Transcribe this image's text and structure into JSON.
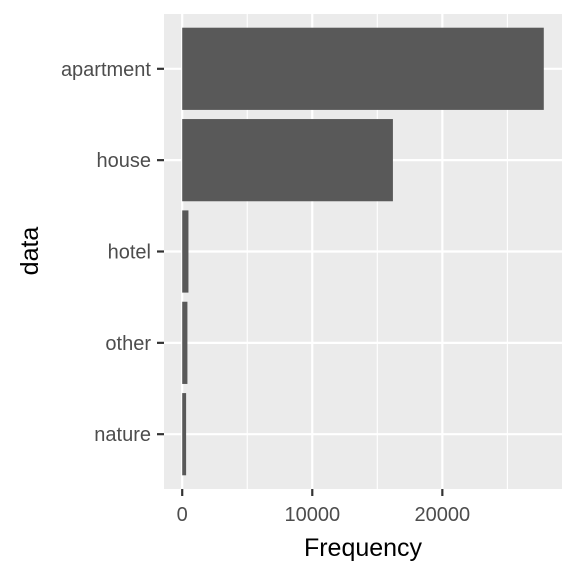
{
  "chart_data": {
    "type": "bar",
    "orientation": "horizontal",
    "categories": [
      "apartment",
      "house",
      "hotel",
      "other",
      "nature"
    ],
    "values": [
      27800,
      16200,
      480,
      400,
      300
    ],
    "xlabel": "Frequency",
    "ylabel": "data",
    "xlim": [
      -1400,
      29200
    ],
    "x_ticks": [
      0,
      10000,
      20000
    ],
    "x_tick_labels": [
      "0",
      "10000",
      "20000"
    ],
    "x_minor_ticks": [
      5000,
      15000,
      25000
    ],
    "grid": true,
    "legend": "none",
    "colors": {
      "bar": "#595959",
      "panel": "#ebebeb",
      "grid": "#ffffff",
      "tick": "#333333"
    }
  }
}
